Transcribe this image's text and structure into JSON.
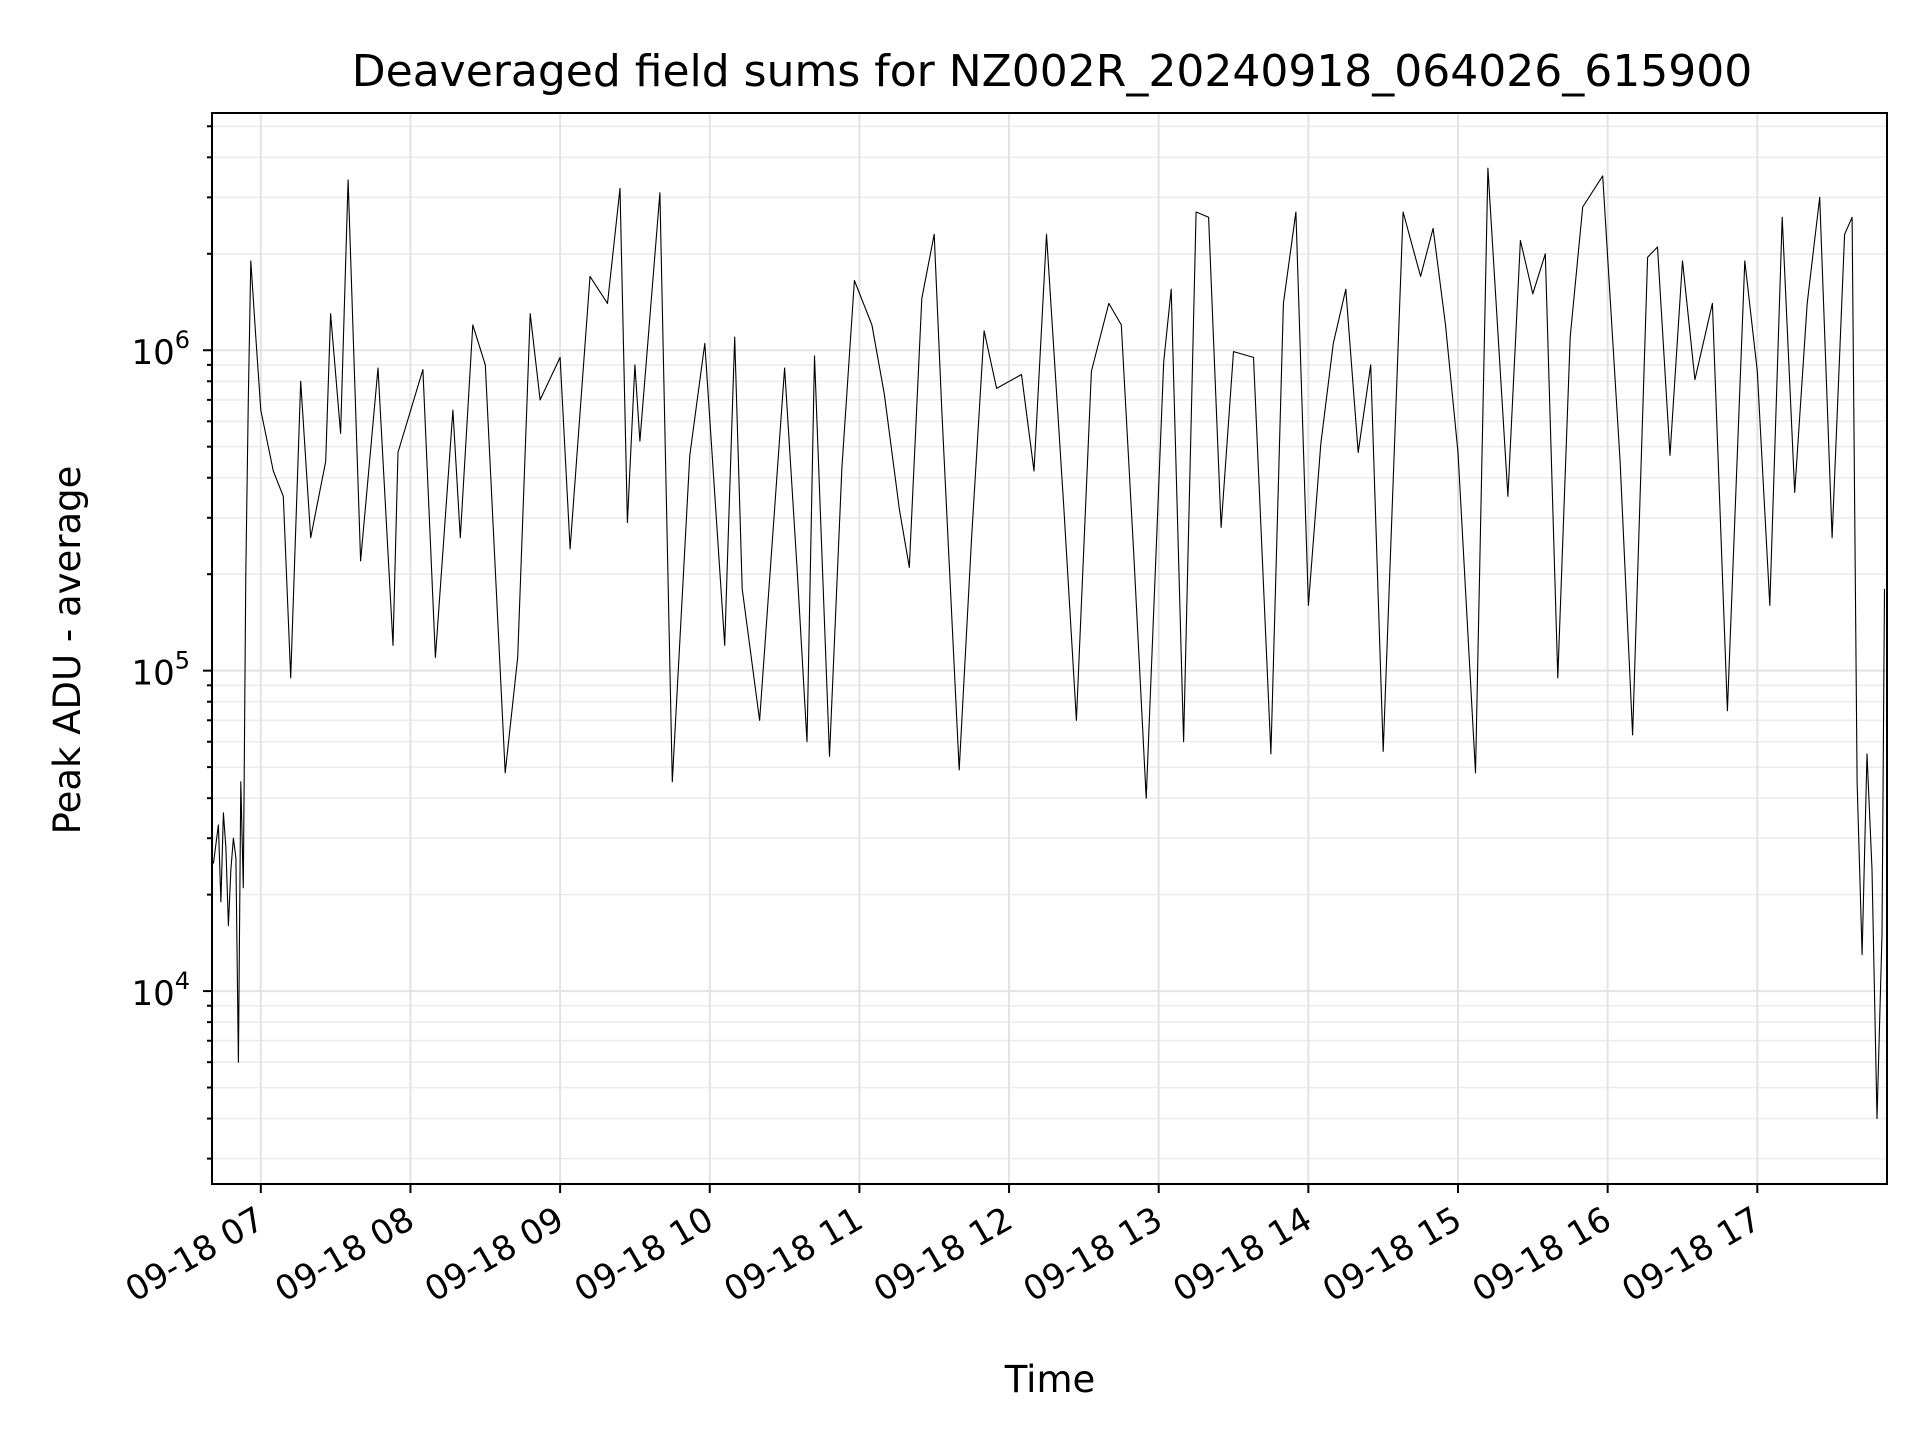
{
  "chart_data": {
    "type": "line",
    "title": "Deaveraged field sums for NZ002R_20240918_064026_615900",
    "xlabel": "Time",
    "ylabel": "Peak ADU - average",
    "yscale": "log",
    "ylim": [
      2500,
      5500000
    ],
    "xlim": [
      "2024-09-18T06:40:26",
      "2024-09-18T17:52:00"
    ],
    "grid": true,
    "x_ticks": [
      {
        "time": "2024-09-18T07:00:00",
        "label": "09-18 07"
      },
      {
        "time": "2024-09-18T08:00:00",
        "label": "09-18 08"
      },
      {
        "time": "2024-09-18T09:00:00",
        "label": "09-18 09"
      },
      {
        "time": "2024-09-18T10:00:00",
        "label": "09-18 10"
      },
      {
        "time": "2024-09-18T11:00:00",
        "label": "09-18 11"
      },
      {
        "time": "2024-09-18T12:00:00",
        "label": "09-18 12"
      },
      {
        "time": "2024-09-18T13:00:00",
        "label": "09-18 13"
      },
      {
        "time": "2024-09-18T14:00:00",
        "label": "09-18 14"
      },
      {
        "time": "2024-09-18T15:00:00",
        "label": "09-18 15"
      },
      {
        "time": "2024-09-18T16:00:00",
        "label": "09-18 16"
      },
      {
        "time": "2024-09-18T17:00:00",
        "label": "09-18 17"
      }
    ],
    "y_ticks": [
      {
        "value": 10000,
        "base": "10",
        "exp": "4"
      },
      {
        "value": 100000,
        "base": "10",
        "exp": "5"
      },
      {
        "value": 1000000,
        "base": "10",
        "exp": "6"
      }
    ],
    "series": [
      {
        "color": "#000000",
        "x": [
          "2024-09-18T06:41:00",
          "2024-09-18T06:43:00",
          "2024-09-18T06:44:00",
          "2024-09-18T06:45:00",
          "2024-09-18T06:46:00",
          "2024-09-18T06:47:00",
          "2024-09-18T06:48:00",
          "2024-09-18T06:49:00",
          "2024-09-18T06:50:00",
          "2024-09-18T06:51:00",
          "2024-09-18T06:52:00",
          "2024-09-18T06:53:00",
          "2024-09-18T06:54:00",
          "2024-09-18T06:55:00",
          "2024-09-18T06:56:00",
          "2024-09-18T06:58:00",
          "2024-09-18T07:00:00",
          "2024-09-18T07:05:00",
          "2024-09-18T07:09:00",
          "2024-09-18T07:12:00",
          "2024-09-18T07:16:00",
          "2024-09-18T07:20:00",
          "2024-09-18T07:26:00",
          "2024-09-18T07:28:00",
          "2024-09-18T07:32:00",
          "2024-09-18T07:35:00",
          "2024-09-18T07:40:00",
          "2024-09-18T07:47:00",
          "2024-09-18T07:53:00",
          "2024-09-18T07:55:00",
          "2024-09-18T08:05:00",
          "2024-09-18T08:10:00",
          "2024-09-18T08:17:00",
          "2024-09-18T08:20:00",
          "2024-09-18T08:25:00",
          "2024-09-18T08:30:00",
          "2024-09-18T08:38:00",
          "2024-09-18T08:43:00",
          "2024-09-18T08:48:00",
          "2024-09-18T08:52:00",
          "2024-09-18T09:00:00",
          "2024-09-18T09:04:00",
          "2024-09-18T09:12:00",
          "2024-09-18T09:19:00",
          "2024-09-18T09:24:00",
          "2024-09-18T09:27:00",
          "2024-09-18T09:30:00",
          "2024-09-18T09:32:00",
          "2024-09-18T09:40:00",
          "2024-09-18T09:45:00",
          "2024-09-18T09:52:00",
          "2024-09-18T09:58:00",
          "2024-09-18T10:06:00",
          "2024-09-18T10:10:00",
          "2024-09-18T10:13:00",
          "2024-09-18T10:20:00",
          "2024-09-18T10:30:00",
          "2024-09-18T10:35:00",
          "2024-09-18T10:39:00",
          "2024-09-18T10:42:00",
          "2024-09-18T10:48:00",
          "2024-09-18T10:53:00",
          "2024-09-18T10:58:00",
          "2024-09-18T11:05:00",
          "2024-09-18T11:10:00",
          "2024-09-18T11:16:00",
          "2024-09-18T11:20:00",
          "2024-09-18T11:25:00",
          "2024-09-18T11:30:00",
          "2024-09-18T11:33:00",
          "2024-09-18T11:40:00",
          "2024-09-18T11:45:00",
          "2024-09-18T11:50:00",
          "2024-09-18T11:55:00",
          "2024-09-18T12:05:00",
          "2024-09-18T12:10:00",
          "2024-09-18T12:15:00",
          "2024-09-18T12:22:00",
          "2024-09-18T12:27:00",
          "2024-09-18T12:33:00",
          "2024-09-18T12:40:00",
          "2024-09-18T12:45:00",
          "2024-09-18T12:50:00",
          "2024-09-18T12:55:00",
          "2024-09-18T13:02:00",
          "2024-09-18T13:05:00",
          "2024-09-18T13:10:00",
          "2024-09-18T13:15:00",
          "2024-09-18T13:20:00",
          "2024-09-18T13:25:00",
          "2024-09-18T13:30:00",
          "2024-09-18T13:38:00",
          "2024-09-18T13:45:00",
          "2024-09-18T13:50:00",
          "2024-09-18T13:55:00",
          "2024-09-18T14:00:00",
          "2024-09-18T14:05:00",
          "2024-09-18T14:10:00",
          "2024-09-18T14:15:00",
          "2024-09-18T14:20:00",
          "2024-09-18T14:25:00",
          "2024-09-18T14:30:00",
          "2024-09-18T14:38:00",
          "2024-09-18T14:45:00",
          "2024-09-18T14:50:00",
          "2024-09-18T14:55:00",
          "2024-09-18T15:00:00",
          "2024-09-18T15:07:00",
          "2024-09-18T15:12:00",
          "2024-09-18T15:20:00",
          "2024-09-18T15:25:00",
          "2024-09-18T15:30:00",
          "2024-09-18T15:35:00",
          "2024-09-18T15:40:00",
          "2024-09-18T15:45:00",
          "2024-09-18T15:50:00",
          "2024-09-18T15:58:00",
          "2024-09-18T16:05:00",
          "2024-09-18T16:10:00",
          "2024-09-18T16:16:00",
          "2024-09-18T16:20:00",
          "2024-09-18T16:25:00",
          "2024-09-18T16:30:00",
          "2024-09-18T16:35:00",
          "2024-09-18T16:42:00",
          "2024-09-18T16:48:00",
          "2024-09-18T16:55:00",
          "2024-09-18T17:00:00",
          "2024-09-18T17:05:00",
          "2024-09-18T17:10:00",
          "2024-09-18T17:15:00",
          "2024-09-18T17:20:00",
          "2024-09-18T17:25:00",
          "2024-09-18T17:30:00",
          "2024-09-18T17:35:00",
          "2024-09-18T17:38:00",
          "2024-09-18T17:40:00",
          "2024-09-18T17:42:00",
          "2024-09-18T17:44:00",
          "2024-09-18T17:46:00",
          "2024-09-18T17:48:00",
          "2024-09-18T17:50:00",
          "2024-09-18T17:51:00"
        ],
        "y": [
          25000,
          33000,
          19000,
          36000,
          28000,
          16000,
          24000,
          30000,
          26000,
          6000,
          45000,
          21000,
          200000,
          700000,
          1900000,
          1100000,
          650000,
          420000,
          350000,
          95000,
          800000,
          260000,
          450000,
          1300000,
          550000,
          3400000,
          220000,
          880000,
          120000,
          480000,
          870000,
          110000,
          650000,
          260000,
          1200000,
          900000,
          48000,
          110000,
          1300000,
          700000,
          950000,
          240000,
          1700000,
          1400000,
          3200000,
          290000,
          900000,
          520000,
          3100000,
          45000,
          470000,
          1050000,
          120000,
          1100000,
          180000,
          70000,
          880000,
          210000,
          60000,
          960000,
          54000,
          430000,
          1650000,
          1200000,
          730000,
          320000,
          210000,
          1450000,
          2300000,
          660000,
          49000,
          260000,
          1150000,
          760000,
          840000,
          420000,
          2300000,
          320000,
          70000,
          860000,
          1400000,
          1200000,
          230000,
          40000,
          920000,
          1550000,
          60000,
          2700000,
          2600000,
          280000,
          990000,
          950000,
          55000,
          1400000,
          2700000,
          160000,
          510000,
          1050000,
          1550000,
          480000,
          900000,
          56000,
          2700000,
          1700000,
          2400000,
          1200000,
          480000,
          48000,
          3700000,
          350000,
          2200000,
          1500000,
          2000000,
          95000,
          1100000,
          2800000,
          3500000,
          450000,
          63000,
          1950000,
          2100000,
          470000,
          1900000,
          810000,
          1400000,
          75000,
          1900000,
          860000,
          160000,
          2600000,
          360000,
          1400000,
          3000000,
          260000,
          2300000,
          2600000,
          45000,
          13000,
          55000,
          24000,
          4000,
          15000,
          180000
        ]
      }
    ]
  }
}
